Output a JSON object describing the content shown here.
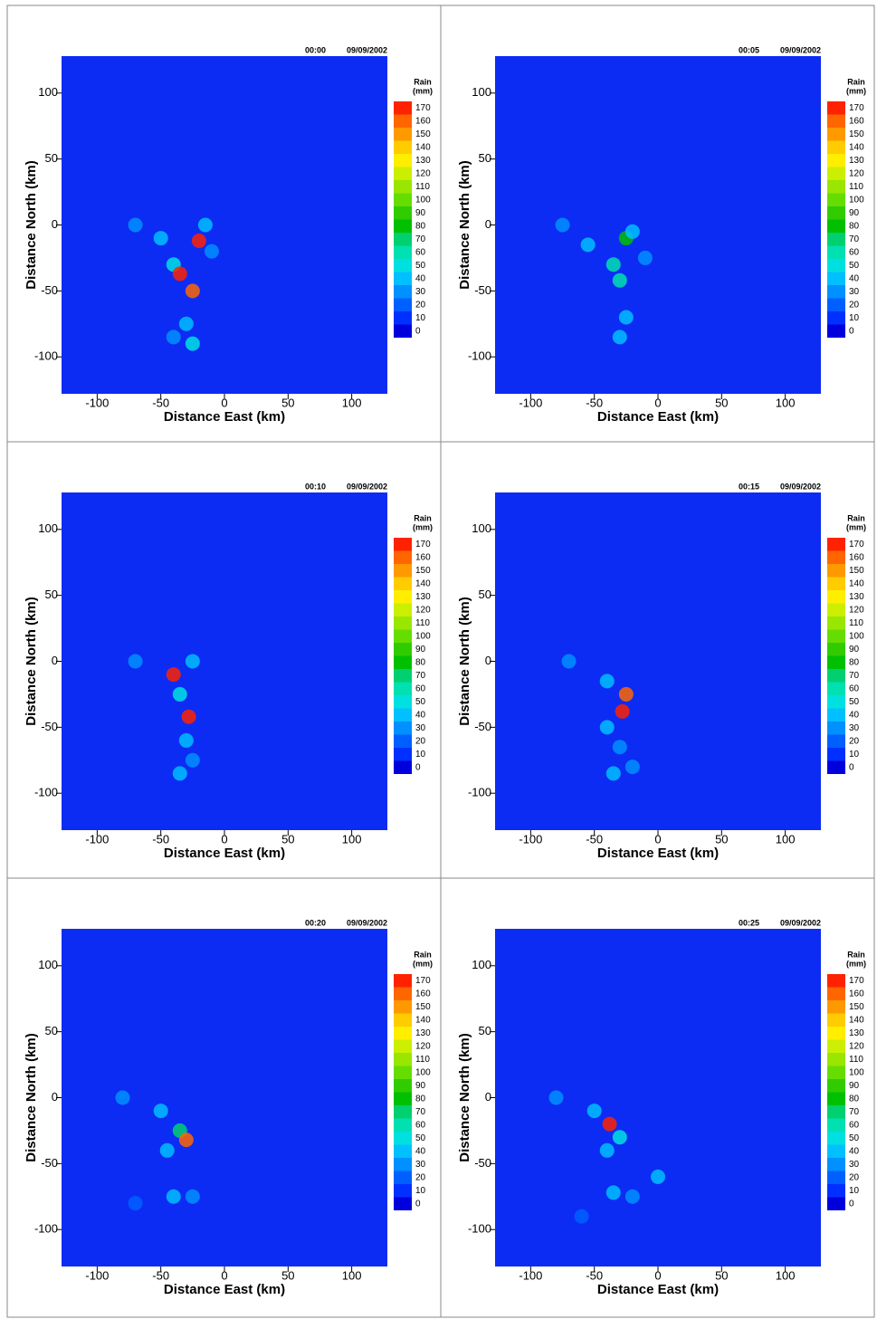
{
  "chart_data": [
    {
      "type": "heatmap",
      "time": "00:00",
      "date": "09/09/2002",
      "xlabel": "Distance East (km)",
      "ylabel": "Distance North (km)",
      "xlim": [
        -128,
        128
      ],
      "ylim": [
        -128,
        128
      ],
      "xticks": [
        -100,
        -50,
        0,
        50,
        100
      ],
      "yticks": [
        -100,
        -50,
        0,
        50,
        100
      ],
      "background_color": "#0c2cf4",
      "x": [
        -70,
        -50,
        -40,
        -35,
        -25,
        -20,
        -15,
        -30,
        -25,
        -40,
        -10
      ],
      "y": [
        0,
        -10,
        -30,
        -37,
        -50,
        -12,
        0,
        -75,
        -90,
        -85,
        -20
      ],
      "values": [
        30,
        40,
        50,
        170,
        160,
        170,
        40,
        40,
        50,
        30,
        30
      ],
      "colorbar": {
        "title": [
          "Rain",
          "(mm)"
        ],
        "levels": [
          0,
          10,
          20,
          30,
          40,
          50,
          60,
          70,
          80,
          90,
          100,
          110,
          120,
          130,
          140,
          150,
          160,
          170
        ],
        "colors": [
          "#0000dd",
          "#0030ff",
          "#0060ff",
          "#0090ff",
          "#00c0ff",
          "#00e0e0",
          "#00e0b0",
          "#00d070",
          "#00c000",
          "#30cc00",
          "#66dd00",
          "#99e600",
          "#ccee00",
          "#ffee00",
          "#ffcc00",
          "#ff9900",
          "#ff6600",
          "#ff2200"
        ]
      }
    },
    {
      "type": "heatmap",
      "time": "00:05",
      "date": "09/09/2002",
      "xlabel": "Distance East (km)",
      "ylabel": "Distance North (km)",
      "xlim": [
        -128,
        128
      ],
      "ylim": [
        -128,
        128
      ],
      "xticks": [
        -100,
        -50,
        0,
        50,
        100
      ],
      "yticks": [
        -100,
        -50,
        0,
        50,
        100
      ],
      "background_color": "#0c2cf4",
      "x": [
        -75,
        -55,
        -35,
        -30,
        -25,
        -20,
        -25,
        -30,
        -10
      ],
      "y": [
        0,
        -15,
        -30,
        -42,
        -10,
        -5,
        -70,
        -85,
        -25
      ],
      "values": [
        30,
        40,
        60,
        60,
        80,
        40,
        40,
        40,
        30
      ],
      "colorbar": {
        "title": [
          "Rain",
          "(mm)"
        ],
        "levels": [
          0,
          10,
          20,
          30,
          40,
          50,
          60,
          70,
          80,
          90,
          100,
          110,
          120,
          130,
          140,
          150,
          160,
          170
        ],
        "colors": [
          "#0000dd",
          "#0030ff",
          "#0060ff",
          "#0090ff",
          "#00c0ff",
          "#00e0e0",
          "#00e0b0",
          "#00d070",
          "#00c000",
          "#30cc00",
          "#66dd00",
          "#99e600",
          "#ccee00",
          "#ffee00",
          "#ffcc00",
          "#ff9900",
          "#ff6600",
          "#ff2200"
        ]
      }
    },
    {
      "type": "heatmap",
      "time": "00:10",
      "date": "09/09/2002",
      "xlabel": "Distance East (km)",
      "ylabel": "Distance North (km)",
      "xlim": [
        -128,
        128
      ],
      "ylim": [
        -128,
        128
      ],
      "xticks": [
        -100,
        -50,
        0,
        50,
        100
      ],
      "yticks": [
        -100,
        -50,
        0,
        50,
        100
      ],
      "background_color": "#0c2cf4",
      "x": [
        -70,
        -40,
        -35,
        -28,
        -25,
        -30,
        -35,
        -25
      ],
      "y": [
        0,
        -10,
        -25,
        -42,
        0,
        -60,
        -85,
        -75
      ],
      "values": [
        30,
        170,
        50,
        170,
        40,
        40,
        40,
        30
      ],
      "colorbar": {
        "title": [
          "Rain",
          "(mm)"
        ],
        "levels": [
          0,
          10,
          20,
          30,
          40,
          50,
          60,
          70,
          80,
          90,
          100,
          110,
          120,
          130,
          140,
          150,
          160,
          170
        ],
        "colors": [
          "#0000dd",
          "#0030ff",
          "#0060ff",
          "#0090ff",
          "#00c0ff",
          "#00e0e0",
          "#00e0b0",
          "#00d070",
          "#00c000",
          "#30cc00",
          "#66dd00",
          "#99e600",
          "#ccee00",
          "#ffee00",
          "#ffcc00",
          "#ff9900",
          "#ff6600",
          "#ff2200"
        ]
      }
    },
    {
      "type": "heatmap",
      "time": "00:15",
      "date": "09/09/2002",
      "xlabel": "Distance East (km)",
      "ylabel": "Distance North (km)",
      "xlim": [
        -128,
        128
      ],
      "ylim": [
        -128,
        128
      ],
      "xticks": [
        -100,
        -50,
        0,
        50,
        100
      ],
      "yticks": [
        -100,
        -50,
        0,
        50,
        100
      ],
      "background_color": "#0c2cf4",
      "x": [
        -70,
        -40,
        -25,
        -28,
        -40,
        -30,
        -35,
        -20
      ],
      "y": [
        0,
        -15,
        -25,
        -38,
        -50,
        -65,
        -85,
        -80
      ],
      "values": [
        30,
        40,
        160,
        170,
        40,
        30,
        40,
        30
      ],
      "colorbar": {
        "title": [
          "Rain",
          "(mm)"
        ],
        "levels": [
          0,
          10,
          20,
          30,
          40,
          50,
          60,
          70,
          80,
          90,
          100,
          110,
          120,
          130,
          140,
          150,
          160,
          170
        ],
        "colors": [
          "#0000dd",
          "#0030ff",
          "#0060ff",
          "#0090ff",
          "#00c0ff",
          "#00e0e0",
          "#00e0b0",
          "#00d070",
          "#00c000",
          "#30cc00",
          "#66dd00",
          "#99e600",
          "#ccee00",
          "#ffee00",
          "#ffcc00",
          "#ff9900",
          "#ff6600",
          "#ff2200"
        ]
      }
    },
    {
      "type": "heatmap",
      "time": "00:20",
      "date": "09/09/2002",
      "xlabel": "Distance East (km)",
      "ylabel": "Distance North (km)",
      "xlim": [
        -128,
        128
      ],
      "ylim": [
        -128,
        128
      ],
      "xticks": [
        -100,
        -50,
        0,
        50,
        100
      ],
      "yticks": [
        -100,
        -50,
        0,
        50,
        100
      ],
      "background_color": "#0c2cf4",
      "x": [
        -80,
        -50,
        -35,
        -30,
        -45,
        -40,
        -25,
        -70
      ],
      "y": [
        0,
        -10,
        -25,
        -32,
        -40,
        -75,
        -75,
        -80
      ],
      "values": [
        30,
        40,
        70,
        160,
        40,
        40,
        30,
        20
      ],
      "colorbar": {
        "title": [
          "Rain",
          "(mm)"
        ],
        "levels": [
          0,
          10,
          20,
          30,
          40,
          50,
          60,
          70,
          80,
          90,
          100,
          110,
          120,
          130,
          140,
          150,
          160,
          170
        ],
        "colors": [
          "#0000dd",
          "#0030ff",
          "#0060ff",
          "#0090ff",
          "#00c0ff",
          "#00e0e0",
          "#00e0b0",
          "#00d070",
          "#00c000",
          "#30cc00",
          "#66dd00",
          "#99e600",
          "#ccee00",
          "#ffee00",
          "#ffcc00",
          "#ff9900",
          "#ff6600",
          "#ff2200"
        ]
      }
    },
    {
      "type": "heatmap",
      "time": "00:25",
      "date": "09/09/2002",
      "xlabel": "Distance East (km)",
      "ylabel": "Distance North (km)",
      "xlim": [
        -128,
        128
      ],
      "ylim": [
        -128,
        128
      ],
      "xticks": [
        -100,
        -50,
        0,
        50,
        100
      ],
      "yticks": [
        -100,
        -50,
        0,
        50,
        100
      ],
      "background_color": "#0c2cf4",
      "x": [
        -80,
        -50,
        -38,
        -30,
        -40,
        -35,
        -20,
        0,
        -60
      ],
      "y": [
        0,
        -10,
        -20,
        -30,
        -40,
        -72,
        -75,
        -60,
        -90
      ],
      "values": [
        30,
        40,
        170,
        50,
        40,
        40,
        30,
        40,
        20
      ],
      "colorbar": {
        "title": [
          "Rain",
          "(mm)"
        ],
        "levels": [
          0,
          10,
          20,
          30,
          40,
          50,
          60,
          70,
          80,
          90,
          100,
          110,
          120,
          130,
          140,
          150,
          160,
          170
        ],
        "colors": [
          "#0000dd",
          "#0030ff",
          "#0060ff",
          "#0090ff",
          "#00c0ff",
          "#00e0e0",
          "#00e0b0",
          "#00d070",
          "#00c000",
          "#30cc00",
          "#66dd00",
          "#99e600",
          "#ccee00",
          "#ffee00",
          "#ffcc00",
          "#ff9900",
          "#ff6600",
          "#ff2200"
        ]
      }
    }
  ]
}
